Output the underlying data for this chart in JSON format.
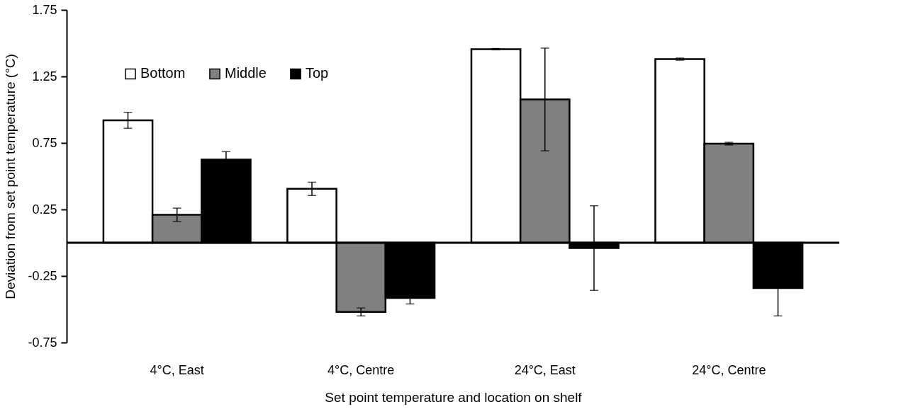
{
  "chart_data": {
    "type": "bar",
    "xlabel": "Set point temperature and location on shelf",
    "ylabel": "Deviation from set point temperature (°C)",
    "categories": [
      "4°C, East",
      "4°C, Centre",
      "24°C, East",
      "24°C, Centre"
    ],
    "series": [
      {
        "name": "Bottom",
        "color": "#ffffff",
        "values": [
          0.92,
          0.405,
          1.455,
          1.38
        ],
        "errors": [
          0.06,
          0.05,
          0.005,
          0.008
        ]
      },
      {
        "name": "Middle",
        "color": "#808080",
        "values": [
          0.21,
          -0.52,
          1.077,
          0.745
        ],
        "errors": [
          0.05,
          0.03,
          0.386,
          0.01
        ]
      },
      {
        "name": "Top",
        "color": "#000000",
        "values": [
          0.625,
          -0.415,
          -0.04,
          -0.34
        ],
        "errors": [
          0.06,
          0.045,
          0.318,
          0.21
        ]
      }
    ],
    "ylim": [
      -0.75,
      1.75
    ],
    "yticks": [
      -0.75,
      -0.25,
      0.25,
      0.75,
      1.25,
      1.75
    ],
    "ref_lines": [
      {
        "axis": "y",
        "value": 0,
        "color": "#000000"
      }
    ],
    "legend": "top left",
    "grid": false
  }
}
